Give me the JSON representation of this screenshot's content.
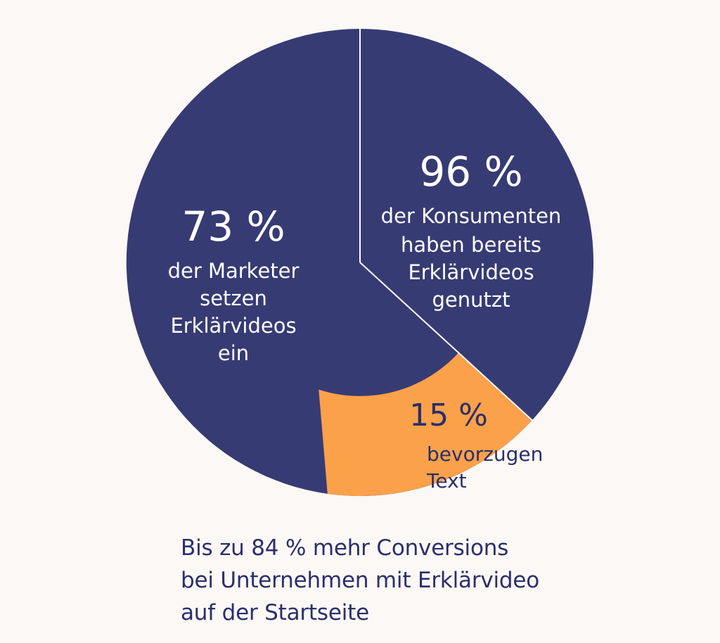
{
  "colors": {
    "background": "#fbf8f5",
    "primary_navy": "#363b73",
    "accent_orange": "#fba14a",
    "text_dark_navy": "#2a2f6b",
    "text_white": "#ffffff"
  },
  "chart_data": {
    "type": "pie",
    "title": "",
    "slices": [
      {
        "id": "marketer",
        "value": 73,
        "percent_label": "73 %",
        "text_lines": [
          "der Marketer",
          "setzen",
          "Erklärvideos",
          "ein"
        ],
        "color": "#363b73"
      },
      {
        "id": "konsumenten",
        "value": 96,
        "percent_label": "96 %",
        "text_lines": [
          "der Konsumenten",
          "haben bereits",
          "Erklärvideos",
          "genutzt"
        ],
        "color": "#363b73"
      },
      {
        "id": "text",
        "value": 15,
        "percent_label": "15 %",
        "text_lines": [
          "bevorzugen",
          "Text"
        ],
        "color": "#fba14a"
      }
    ]
  },
  "caption": {
    "lines": [
      "Bis zu 84 % mehr Conversions",
      "bei Unternehmen mit Erklärvideo",
      "auf der Startseite"
    ]
  }
}
